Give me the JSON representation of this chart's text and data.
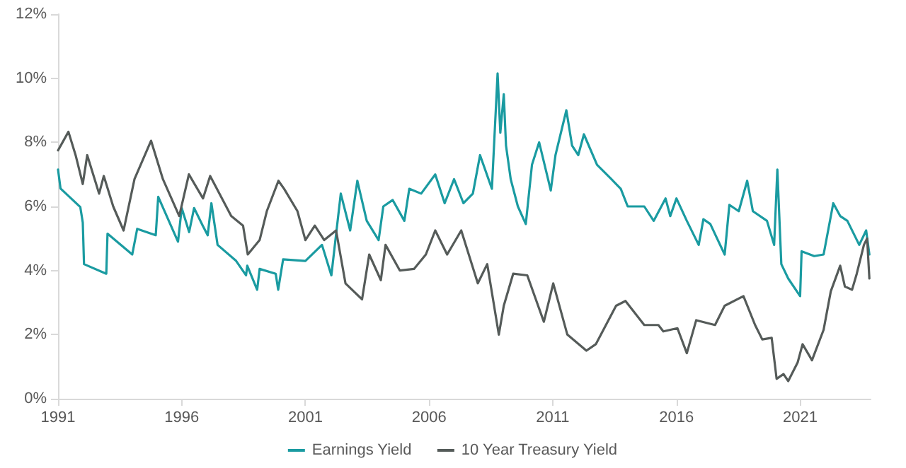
{
  "chart_data": {
    "type": "line",
    "legend": "bottom",
    "grid": false,
    "marker": "none",
    "line_style": "solid",
    "xlim": [
      1991,
      2023.85
    ],
    "xticks": [
      1991,
      1996,
      2001,
      2006,
      2011,
      2016,
      2021
    ],
    "ylim": [
      0,
      12
    ],
    "yticks": [
      {
        "value": 0,
        "label": "0%"
      },
      {
        "value": 2,
        "label": "2%"
      },
      {
        "value": 4,
        "label": "4%"
      },
      {
        "value": 6,
        "label": "6%"
      },
      {
        "value": 8,
        "label": "8%"
      },
      {
        "value": 10,
        "label": "10%"
      },
      {
        "value": 12,
        "label": "12%"
      }
    ],
    "series": [
      {
        "name": "Earnings Yield",
        "color": "#1a9ba1",
        "x": [
          1991.0,
          1991.1,
          1991.9,
          1992.0,
          1992.05,
          1992.95,
          1993.0,
          1994.0,
          1994.2,
          1994.95,
          1995.05,
          1995.85,
          1996.0,
          1996.3,
          1996.5,
          1996.85,
          1997.05,
          1997.2,
          1997.45,
          1998.2,
          1998.6,
          1998.65,
          1999.05,
          1999.15,
          1999.8,
          1999.9,
          2000.1,
          2001.0,
          2001.67,
          2002.05,
          2002.43,
          2002.81,
          2003.1,
          2003.48,
          2003.96,
          2004.15,
          2004.53,
          2005.0,
          2005.2,
          2005.68,
          2006.25,
          2006.63,
          2007.01,
          2007.39,
          2007.77,
          2008.06,
          2008.54,
          2008.77,
          2008.88,
          2009.02,
          2009.11,
          2009.3,
          2009.59,
          2009.91,
          2010.16,
          2010.45,
          2010.92,
          2011.11,
          2011.55,
          2011.78,
          2012.03,
          2012.26,
          2012.79,
          2013.37,
          2013.75,
          2014.03,
          2014.7,
          2015.08,
          2015.56,
          2015.75,
          2016.0,
          2016.42,
          2016.9,
          2017.09,
          2017.37,
          2017.95,
          2018.14,
          2018.52,
          2018.86,
          2019.09,
          2019.66,
          2019.95,
          2020.08,
          2020.24,
          2020.52,
          2021.0,
          2021.06,
          2021.57,
          2021.95,
          2022.34,
          2022.62,
          2022.91,
          2023.39,
          2023.67,
          2023.8
        ],
        "values": [
          7.15,
          6.56,
          5.98,
          5.5,
          4.2,
          3.9,
          5.15,
          4.5,
          5.3,
          5.1,
          6.3,
          4.9,
          5.95,
          5.2,
          5.95,
          5.4,
          5.1,
          6.1,
          4.8,
          4.3,
          3.85,
          4.15,
          3.4,
          4.05,
          3.9,
          3.4,
          4.35,
          4.3,
          4.8,
          3.85,
          6.4,
          5.25,
          6.8,
          5.55,
          4.95,
          6.0,
          6.2,
          5.55,
          6.55,
          6.4,
          7.0,
          6.1,
          6.85,
          6.1,
          6.4,
          7.6,
          6.55,
          10.15,
          8.3,
          9.5,
          7.9,
          6.85,
          6.0,
          5.45,
          7.3,
          8.0,
          6.5,
          7.6,
          9.0,
          7.9,
          7.6,
          8.25,
          7.3,
          6.85,
          6.55,
          6.0,
          6.0,
          5.55,
          6.25,
          5.7,
          6.25,
          5.55,
          4.8,
          5.6,
          5.45,
          4.5,
          6.05,
          5.85,
          6.8,
          5.85,
          5.55,
          4.8,
          7.15,
          4.2,
          3.75,
          3.2,
          4.6,
          4.45,
          4.5,
          6.1,
          5.7,
          5.55,
          4.8,
          5.25,
          4.5
        ]
      },
      {
        "name": "10 Year Treasury Yield",
        "color": "#555b59",
        "x": [
          1991.0,
          1991.42,
          1991.71,
          1992.0,
          1992.18,
          1992.66,
          1992.85,
          1993.23,
          1993.65,
          1994.09,
          1994.76,
          1995.24,
          1995.9,
          1996.29,
          1996.86,
          1997.15,
          1998.0,
          1998.48,
          1998.67,
          1999.15,
          1999.44,
          1999.91,
          2000.14,
          2000.68,
          2001.0,
          2001.38,
          2001.76,
          2002.24,
          2002.62,
          2003.29,
          2003.58,
          2004.05,
          2004.24,
          2004.82,
          2005.39,
          2005.87,
          2006.25,
          2006.73,
          2007.3,
          2007.97,
          2008.35,
          2008.82,
          2009.02,
          2009.4,
          2009.97,
          2010.64,
          2011.02,
          2011.59,
          2012.36,
          2012.74,
          2013.56,
          2013.94,
          2014.7,
          2015.27,
          2015.47,
          2016.04,
          2016.42,
          2016.8,
          2017.56,
          2017.95,
          2018.71,
          2019.18,
          2019.47,
          2019.85,
          2020.05,
          2020.33,
          2020.52,
          2020.9,
          2021.1,
          2021.48,
          2021.95,
          2022.24,
          2022.62,
          2022.81,
          2023.1,
          2023.29,
          2023.58,
          2023.71,
          2023.8
        ],
        "values": [
          7.75,
          8.33,
          7.6,
          6.7,
          7.6,
          6.4,
          6.95,
          6.0,
          5.25,
          6.85,
          8.05,
          6.85,
          5.7,
          7.0,
          6.25,
          6.95,
          5.7,
          5.4,
          4.5,
          4.95,
          5.85,
          6.8,
          6.55,
          5.85,
          4.95,
          5.4,
          4.95,
          5.25,
          3.6,
          3.1,
          4.5,
          3.7,
          4.8,
          4.0,
          4.05,
          4.5,
          5.25,
          4.5,
          5.25,
          3.6,
          4.2,
          2.0,
          2.9,
          3.9,
          3.85,
          2.4,
          3.6,
          2.0,
          1.5,
          1.7,
          2.9,
          3.05,
          2.3,
          2.3,
          2.1,
          2.2,
          1.42,
          2.45,
          2.3,
          2.9,
          3.2,
          2.3,
          1.85,
          1.9,
          0.62,
          0.77,
          0.55,
          1.13,
          1.7,
          1.2,
          2.15,
          3.35,
          4.15,
          3.5,
          3.4,
          3.9,
          4.8,
          5.0,
          3.75
        ]
      }
    ]
  }
}
